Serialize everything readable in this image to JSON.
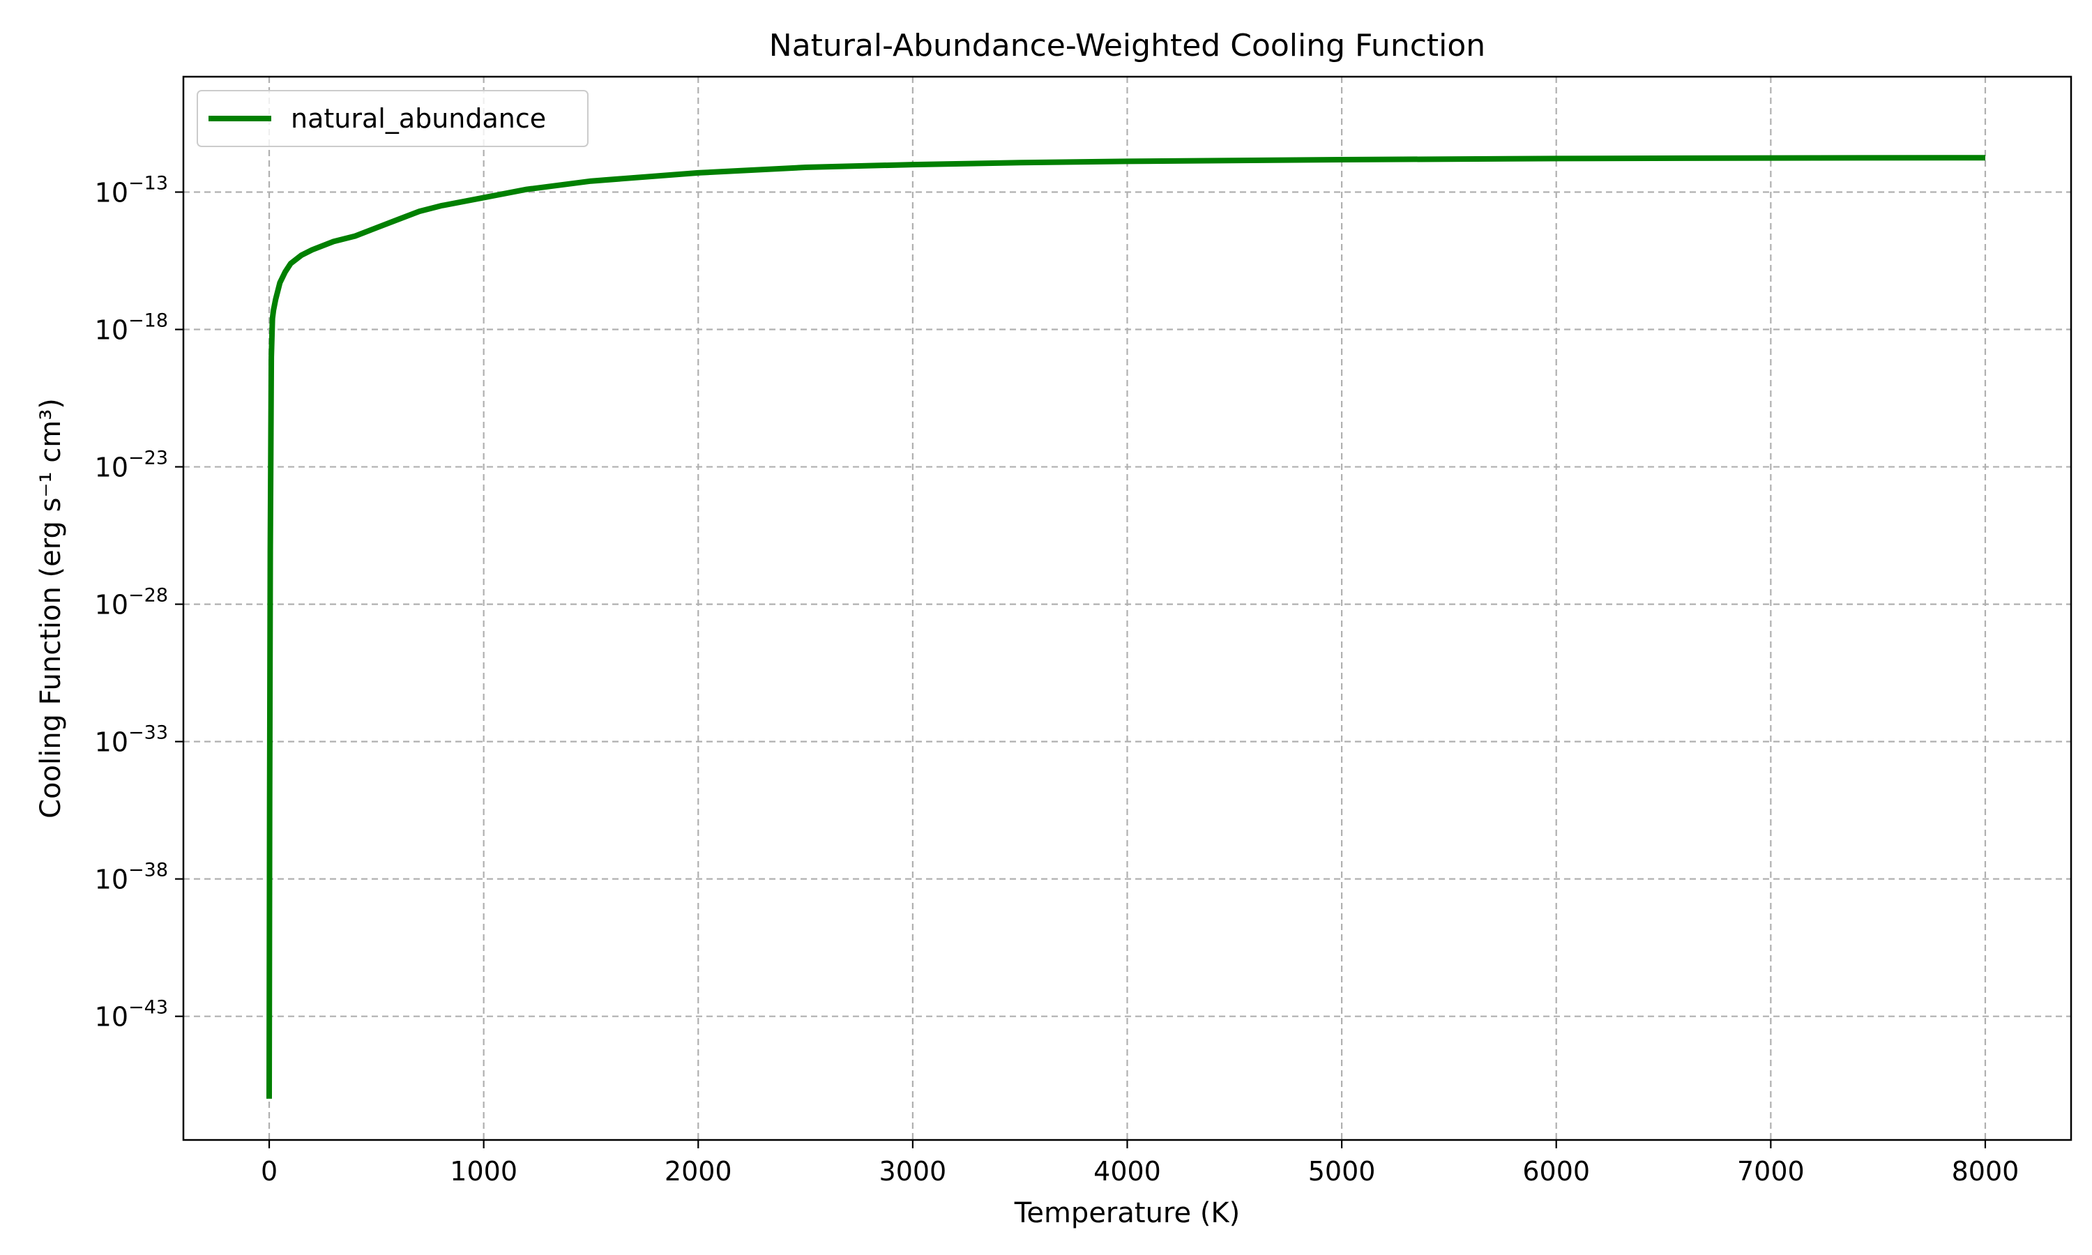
{
  "chart_data": {
    "type": "line",
    "title": "Natural-Abundance-Weighted Cooling Function",
    "xlabel": "Temperature (K)",
    "ylabel": "Cooling Function (erg s⁻¹ cm³)",
    "yscale": "log",
    "xlim": [
      -400,
      8400
    ],
    "ylim_exponent": [
      -47.5,
      -8.8
    ],
    "x_ticks": [
      0,
      1000,
      2000,
      3000,
      4000,
      5000,
      6000,
      7000,
      8000
    ],
    "x_tick_labels": [
      "0",
      "1000",
      "2000",
      "3000",
      "4000",
      "5000",
      "6000",
      "7000",
      "8000"
    ],
    "y_tick_exponents": [
      -13,
      -18,
      -23,
      -28,
      -33,
      -38,
      -43
    ],
    "y_tick_base": "10",
    "y_tick_labels": [
      "−13",
      "−18",
      "−23",
      "−28",
      "−33",
      "−38",
      "−43"
    ],
    "grid": true,
    "legend": {
      "placement": "top-left",
      "entries": [
        "natural_abundance"
      ]
    },
    "series": [
      {
        "name": "natural_abundance",
        "color": "#008000",
        "x": [
          0,
          2,
          5,
          10,
          15,
          20,
          30,
          50,
          75,
          100,
          150,
          200,
          300,
          400,
          500,
          600,
          700,
          800,
          1000,
          1200,
          1500,
          2000,
          2500,
          3000,
          3500,
          4000,
          5000,
          6000,
          7000,
          8000
        ],
        "log10_y": [
          -46.0,
          -35.0,
          -26.0,
          -19.0,
          -17.6,
          -17.3,
          -16.9,
          -16.3,
          -15.9,
          -15.6,
          -15.3,
          -15.1,
          -14.8,
          -14.6,
          -14.3,
          -14.0,
          -13.7,
          -13.5,
          -13.2,
          -12.9,
          -12.6,
          -12.3,
          -12.1,
          -12.0,
          -11.93,
          -11.88,
          -11.82,
          -11.78,
          -11.76,
          -11.75
        ]
      }
    ]
  }
}
